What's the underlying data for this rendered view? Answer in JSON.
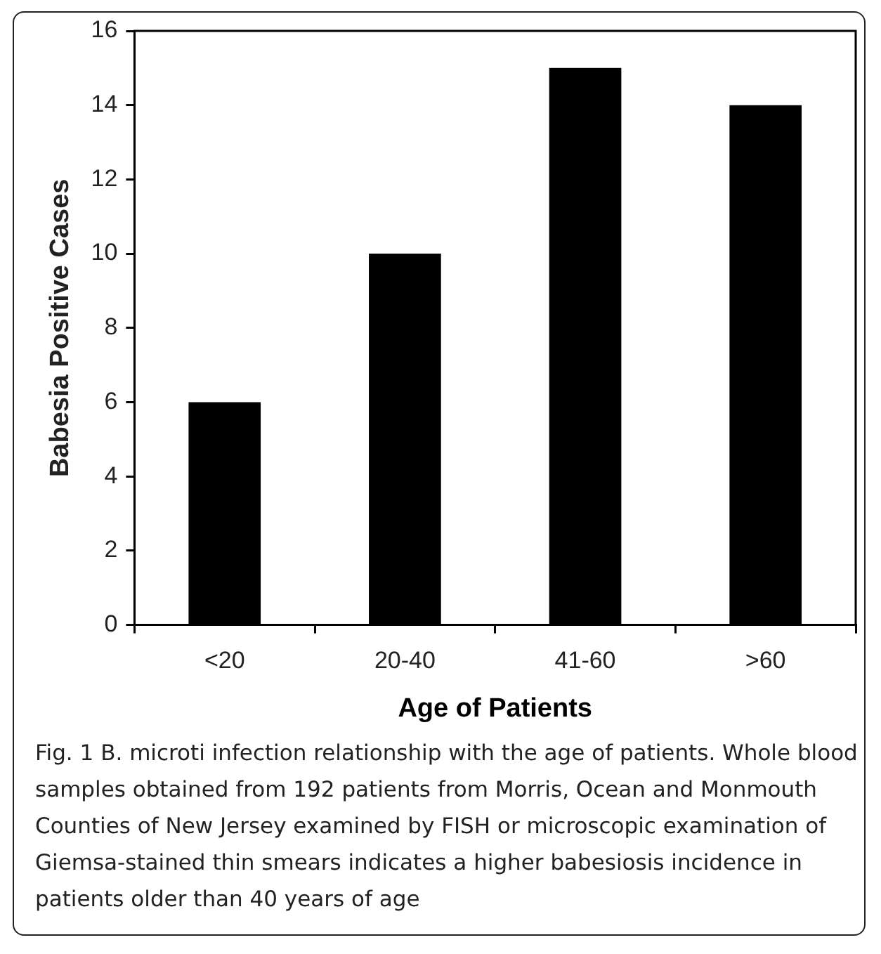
{
  "chart_data": {
    "type": "bar",
    "xlabel": "Age of Patients",
    "ylabel": "Babesia Positive Cases",
    "categories": [
      "<20",
      "20-40",
      "41-60",
      ">60"
    ],
    "values": [
      6,
      10,
      15,
      14
    ],
    "color": "#000000",
    "ylim": [
      0,
      16
    ],
    "yticks": [
      0,
      2,
      4,
      6,
      8,
      10,
      12,
      14,
      16
    ],
    "grid": false,
    "legend": false,
    "annotations": [
      "Fig. 1 B. microti infection relationship with the age of patients. Whole blood samples obtained from 192 patients from Morris, Ocean and Monmouth Counties of New Jersey examined by FISH or microscopic examination of Giemsa-stained thin smears indicates a higher babesiosis incidence in patients older than 40 years of age"
    ]
  }
}
